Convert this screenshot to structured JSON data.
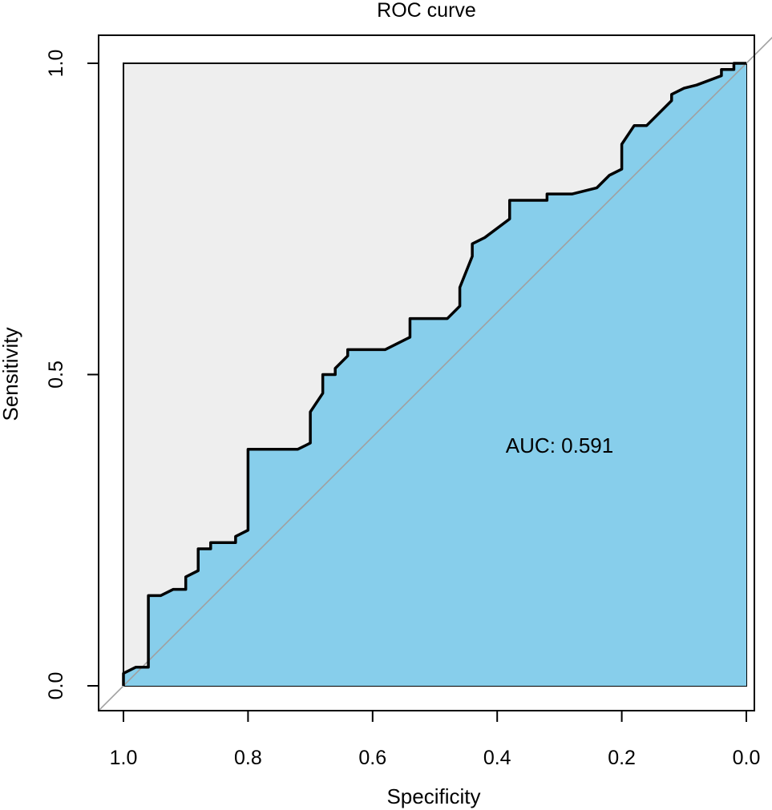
{
  "chart_data": {
    "type": "line",
    "title": "ROC curve",
    "xlabel": "Specificity",
    "ylabel": "Sensitivity",
    "x_reversed": true,
    "xlim": [
      1.0,
      0.0
    ],
    "ylim": [
      0.0,
      1.0
    ],
    "x_ticks": [
      1.0,
      0.8,
      0.6,
      0.4,
      0.2,
      0.0
    ],
    "x_tick_labels": [
      "1.0",
      "0.8",
      "0.6",
      "0.4",
      "0.2",
      "0.0"
    ],
    "y_ticks": [
      0.0,
      0.5,
      1.0
    ],
    "y_tick_labels": [
      "0.0",
      "0.5",
      "1.0"
    ],
    "annotation": "AUC: 0.591",
    "auc": 0.591,
    "grid": false,
    "colors": {
      "auc_fill": "#87CEEB",
      "partial_region": "#EEEEEE",
      "curve": "#000000",
      "diagonal": "#A0A0A0"
    },
    "series": [
      {
        "x": [
          1.0,
          1.0,
          0.98,
          0.96,
          0.96,
          0.94,
          0.92,
          0.9,
          0.9,
          0.88,
          0.88,
          0.86,
          0.86,
          0.82,
          0.82,
          0.8,
          0.8,
          0.72,
          0.7,
          0.7,
          0.68,
          0.68,
          0.66,
          0.66,
          0.64,
          0.64,
          0.58,
          0.54,
          0.54,
          0.48,
          0.46,
          0.46,
          0.44,
          0.44,
          0.42,
          0.38,
          0.38,
          0.32,
          0.32,
          0.28,
          0.24,
          0.22,
          0.2,
          0.2,
          0.18,
          0.16,
          0.12,
          0.12,
          0.1,
          0.08,
          0.04,
          0.04,
          0.02,
          0.02,
          0.0
        ],
        "y": [
          0.0,
          0.02,
          0.03,
          0.03,
          0.145,
          0.145,
          0.155,
          0.155,
          0.175,
          0.185,
          0.22,
          0.22,
          0.23,
          0.23,
          0.24,
          0.25,
          0.38,
          0.38,
          0.39,
          0.44,
          0.47,
          0.5,
          0.5,
          0.51,
          0.53,
          0.54,
          0.54,
          0.56,
          0.59,
          0.59,
          0.61,
          0.64,
          0.69,
          0.71,
          0.72,
          0.75,
          0.78,
          0.78,
          0.79,
          0.79,
          0.8,
          0.82,
          0.83,
          0.87,
          0.9,
          0.9,
          0.94,
          0.95,
          0.96,
          0.965,
          0.98,
          0.99,
          0.99,
          1.0,
          1.0
        ]
      }
    ]
  }
}
